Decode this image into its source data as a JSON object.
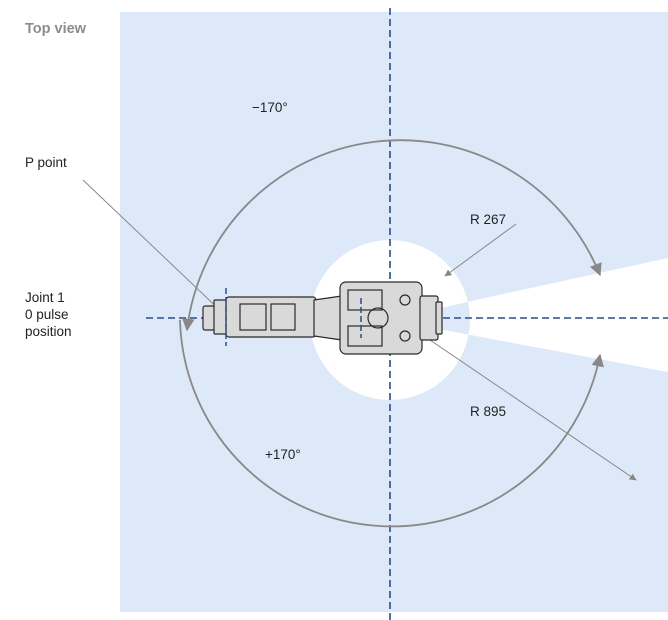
{
  "title": "Top view",
  "labels": {
    "minus_angle": "−170°",
    "plus_angle": "+170°",
    "p_point": "P point",
    "r_inner": "R 267",
    "r_outer": "R 895",
    "joint_line1": "Joint 1",
    "joint_line2": "0 pulse",
    "joint_line3": "position"
  },
  "colors": {
    "zone_fill": "#dde9f8",
    "axis_line": "#2c4c8c",
    "arc_line": "#888888",
    "robot_fill": "#d9d9d9",
    "robot_stroke": "#2a2a2a"
  }
}
